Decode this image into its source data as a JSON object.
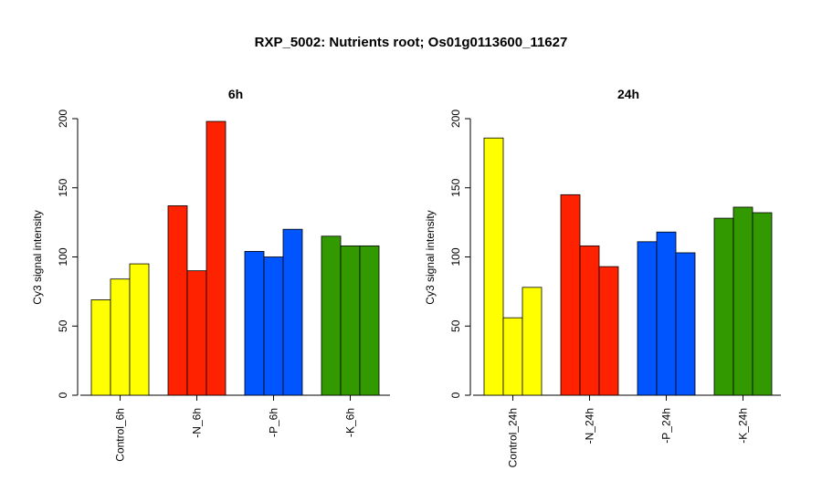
{
  "title": "RXP_5002: Nutrients root; Os01g0113600_11627",
  "chart_data": [
    {
      "type": "bar",
      "title": "6h",
      "ylabel": "Cy3 signal intensity",
      "ylim": [
        0,
        200
      ],
      "yticks": [
        0,
        50,
        100,
        150,
        200
      ],
      "categories": [
        "Control_6h",
        "-N_6h",
        "-P_6h",
        "-K_6h"
      ],
      "colors": [
        "#ffff00",
        "#ff2200",
        "#0055ff",
        "#339900"
      ],
      "values": [
        [
          69,
          84,
          95
        ],
        [
          137,
          90,
          198
        ],
        [
          104,
          100,
          120
        ],
        [
          115,
          108,
          108
        ]
      ]
    },
    {
      "type": "bar",
      "title": "24h",
      "ylabel": "Cy3 signal intensity",
      "ylim": [
        0,
        200
      ],
      "yticks": [
        0,
        50,
        100,
        150,
        200
      ],
      "categories": [
        "Control_24h",
        "-N_24h",
        "-P_24h",
        "-K_24h"
      ],
      "colors": [
        "#ffff00",
        "#ff2200",
        "#0055ff",
        "#339900"
      ],
      "values": [
        [
          186,
          56,
          78
        ],
        [
          145,
          108,
          93
        ],
        [
          111,
          118,
          103
        ],
        [
          128,
          136,
          132
        ]
      ]
    }
  ]
}
